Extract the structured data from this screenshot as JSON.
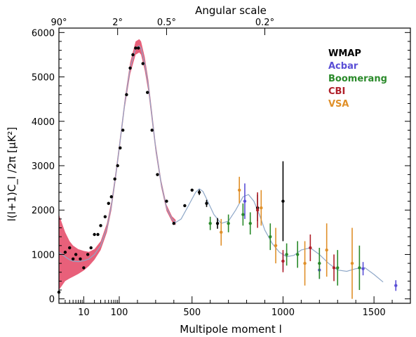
{
  "chart_data": {
    "type": "scatter",
    "top_axis_title": "Angular scale",
    "top_ticks": [
      {
        "label": "90°",
        "x": 2
      },
      {
        "label": "2°",
        "x": 90
      },
      {
        "label": "0.5°",
        "x": 360
      },
      {
        "label": "0.2°",
        "x": 900
      }
    ],
    "xlabel": "Multipole moment l",
    "ylabel": "l(l+1)C_l /2π [μK²]",
    "x_scale": "log below l=100, linear above",
    "x_ticks": [
      {
        "label": "10",
        "value": 10
      },
      {
        "label": "100",
        "value": 100
      },
      {
        "label": "500",
        "value": 500
      },
      {
        "label": "1000",
        "value": 1000
      },
      {
        "label": "1500",
        "value": 1500
      }
    ],
    "y_ticks": [
      "0",
      "1000",
      "2000",
      "3000",
      "4000",
      "5000",
      "6000"
    ],
    "ylim": [
      -100,
      6100
    ],
    "legend_position": "top-right",
    "colors": {
      "WMAP": "#000000",
      "Acbar": "#5a4fd6",
      "Boomerang": "#2a8a2a",
      "CBI": "#b0202a",
      "VSA": "#e0902a",
      "band": "#e8607a",
      "model": "#8fa8c8"
    },
    "model_curve": {
      "x": [
        2,
        3,
        4,
        5,
        7,
        10,
        14,
        20,
        30,
        45,
        60,
        80,
        100,
        130,
        160,
        190,
        210,
        220,
        240,
        260,
        280,
        300,
        330,
        360,
        390,
        410,
        440,
        480,
        520,
        540,
        560,
        580,
        620,
        660,
        700,
        740,
        780,
        810,
        840,
        870,
        900,
        940,
        980,
        1020,
        1060,
        1100,
        1150,
        1200,
        1250,
        1300,
        1350,
        1400,
        1450,
        1500,
        1550
      ],
      "y": [
        1050,
        950,
        880,
        850,
        840,
        860,
        900,
        1000,
        1200,
        1600,
        2100,
        2800,
        3400,
        4400,
        5200,
        5650,
        5700,
        5650,
        5300,
        4800,
        4100,
        3400,
        2600,
        2050,
        1800,
        1720,
        1800,
        2100,
        2400,
        2480,
        2420,
        2250,
        1900,
        1700,
        1750,
        2000,
        2300,
        2350,
        2200,
        1900,
        1550,
        1250,
        1050,
        950,
        980,
        1100,
        1150,
        1000,
        800,
        650,
        620,
        680,
        700,
        550,
        380
      ]
    },
    "band": {
      "x": [
        2,
        3,
        4,
        5,
        7,
        10,
        14,
        20,
        30,
        45,
        60,
        80,
        100,
        130,
        160,
        190,
        210,
        220,
        240,
        260,
        280,
        300,
        330,
        360,
        390,
        410
      ],
      "upper": [
        1900,
        1500,
        1300,
        1200,
        1120,
        1080,
        1060,
        1120,
        1300,
        1700,
        2200,
        2900,
        3500,
        4500,
        5330,
        5800,
        5850,
        5800,
        5450,
        4930,
        4220,
        3500,
        2680,
        2120,
        1860,
        1780
      ],
      "lower": [
        200,
        400,
        460,
        500,
        560,
        640,
        740,
        880,
        1100,
        1500,
        2000,
        2700,
        3300,
        4300,
        5070,
        5500,
        5550,
        5500,
        5150,
        4670,
        3980,
        3300,
        2520,
        1980,
        1740,
        1660
      ]
    },
    "series": [
      {
        "name": "WMAP",
        "points": [
          {
            "x": 2,
            "y": 150,
            "err": 0
          },
          {
            "x": 3,
            "y": 1050,
            "err": 0
          },
          {
            "x": 4,
            "y": 1150,
            "err": 0
          },
          {
            "x": 5,
            "y": 900,
            "err": 0
          },
          {
            "x": 6,
            "y": 1000,
            "err": 0
          },
          {
            "x": 8,
            "y": 900,
            "err": 0
          },
          {
            "x": 10,
            "y": 700,
            "err": 0
          },
          {
            "x": 13,
            "y": 1000,
            "err": 0
          },
          {
            "x": 16,
            "y": 1150,
            "err": 0
          },
          {
            "x": 20,
            "y": 1450,
            "err": 0
          },
          {
            "x": 25,
            "y": 1450,
            "err": 0
          },
          {
            "x": 30,
            "y": 1650,
            "err": 0
          },
          {
            "x": 40,
            "y": 1850,
            "err": 0
          },
          {
            "x": 50,
            "y": 2150,
            "err": 0
          },
          {
            "x": 60,
            "y": 2300,
            "err": 0
          },
          {
            "x": 75,
            "y": 2700,
            "err": 0
          },
          {
            "x": 90,
            "y": 3000,
            "err": 0
          },
          {
            "x": 105,
            "y": 3400,
            "err": 0
          },
          {
            "x": 120,
            "y": 3800,
            "err": 0
          },
          {
            "x": 140,
            "y": 4600,
            "err": 0
          },
          {
            "x": 160,
            "y": 5200,
            "err": 0
          },
          {
            "x": 175,
            "y": 5500,
            "err": 0
          },
          {
            "x": 190,
            "y": 5650,
            "err": 0
          },
          {
            "x": 205,
            "y": 5650,
            "err": 0
          },
          {
            "x": 230,
            "y": 5300,
            "err": 0
          },
          {
            "x": 255,
            "y": 4650,
            "err": 0
          },
          {
            "x": 280,
            "y": 3800,
            "err": 0
          },
          {
            "x": 310,
            "y": 2800,
            "err": 0
          },
          {
            "x": 360,
            "y": 2200,
            "err": 0
          },
          {
            "x": 400,
            "y": 1700,
            "err": 0
          },
          {
            "x": 460,
            "y": 2100,
            "err": 0
          },
          {
            "x": 500,
            "y": 2450,
            "err": 0
          },
          {
            "x": 540,
            "y": 2400,
            "err": 60
          },
          {
            "x": 580,
            "y": 2150,
            "err": 80
          },
          {
            "x": 640,
            "y": 1700,
            "err": 120
          },
          {
            "x": 860,
            "y": 2050,
            "err": 300
          },
          {
            "x": 1000,
            "y": 2200,
            "err": 900
          }
        ]
      },
      {
        "name": "Acbar",
        "points": [
          {
            "x": 790,
            "y": 2200,
            "err": 400
          },
          {
            "x": 1000,
            "y": 850,
            "err": 200
          },
          {
            "x": 1200,
            "y": 650,
            "err": 200
          },
          {
            "x": 1440,
            "y": 680,
            "err": 150
          },
          {
            "x": 1620,
            "y": 300,
            "err": 120
          }
        ]
      },
      {
        "name": "Boomerang",
        "points": [
          {
            "x": 600,
            "y": 1700,
            "err": 150
          },
          {
            "x": 700,
            "y": 1700,
            "err": 200
          },
          {
            "x": 780,
            "y": 1900,
            "err": 250
          },
          {
            "x": 820,
            "y": 1700,
            "err": 250
          },
          {
            "x": 930,
            "y": 1400,
            "err": 300
          },
          {
            "x": 1020,
            "y": 1000,
            "err": 250
          },
          {
            "x": 1080,
            "y": 1000,
            "err": 300
          },
          {
            "x": 1200,
            "y": 800,
            "err": 350
          },
          {
            "x": 1300,
            "y": 700,
            "err": 400
          },
          {
            "x": 1420,
            "y": 700,
            "err": 500
          }
        ]
      },
      {
        "name": "CBI",
        "points": [
          {
            "x": 860,
            "y": 2000,
            "err": 400
          },
          {
            "x": 1000,
            "y": 850,
            "err": 250
          },
          {
            "x": 1150,
            "y": 1150,
            "err": 300
          },
          {
            "x": 1280,
            "y": 700,
            "err": 300
          }
        ]
      },
      {
        "name": "VSA",
        "points": [
          {
            "x": 660,
            "y": 1500,
            "err": 300
          },
          {
            "x": 760,
            "y": 2450,
            "err": 300
          },
          {
            "x": 880,
            "y": 2050,
            "err": 400
          },
          {
            "x": 960,
            "y": 1200,
            "err": 400
          },
          {
            "x": 1120,
            "y": 800,
            "err": 500
          },
          {
            "x": 1240,
            "y": 1100,
            "err": 600
          },
          {
            "x": 1380,
            "y": 800,
            "err": 800
          }
        ]
      }
    ]
  }
}
